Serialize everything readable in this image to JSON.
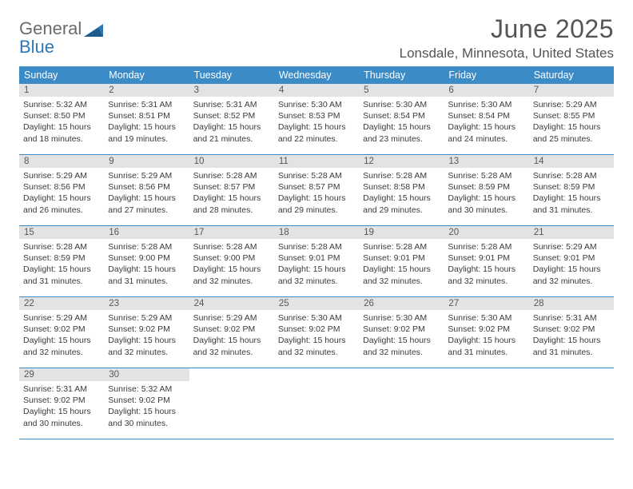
{
  "brand": {
    "word1": "General",
    "word2": "Blue"
  },
  "title": {
    "month_year": "June 2025",
    "location": "Lonsdale, Minnesota, United States"
  },
  "colors": {
    "header_bg": "#3b8bc7",
    "header_text": "#ffffff",
    "daynum_bg": "#e3e3e3",
    "daynum_text": "#575757",
    "row_border": "#3b8bc7",
    "body_text": "#3a3a3a",
    "logo_gray": "#6b6b6b",
    "logo_blue": "#2f78b7"
  },
  "typography": {
    "title_fontsize": 32,
    "location_fontsize": 17,
    "header_fontsize": 12.5,
    "daynum_fontsize": 11.5,
    "body_fontsize": 10.5
  },
  "day_headers": [
    "Sunday",
    "Monday",
    "Tuesday",
    "Wednesday",
    "Thursday",
    "Friday",
    "Saturday"
  ],
  "weeks": [
    [
      {
        "n": "1",
        "sr": "5:32 AM",
        "ss": "8:50 PM",
        "dl": "15 hours and 18 minutes."
      },
      {
        "n": "2",
        "sr": "5:31 AM",
        "ss": "8:51 PM",
        "dl": "15 hours and 19 minutes."
      },
      {
        "n": "3",
        "sr": "5:31 AM",
        "ss": "8:52 PM",
        "dl": "15 hours and 21 minutes."
      },
      {
        "n": "4",
        "sr": "5:30 AM",
        "ss": "8:53 PM",
        "dl": "15 hours and 22 minutes."
      },
      {
        "n": "5",
        "sr": "5:30 AM",
        "ss": "8:54 PM",
        "dl": "15 hours and 23 minutes."
      },
      {
        "n": "6",
        "sr": "5:30 AM",
        "ss": "8:54 PM",
        "dl": "15 hours and 24 minutes."
      },
      {
        "n": "7",
        "sr": "5:29 AM",
        "ss": "8:55 PM",
        "dl": "15 hours and 25 minutes."
      }
    ],
    [
      {
        "n": "8",
        "sr": "5:29 AM",
        "ss": "8:56 PM",
        "dl": "15 hours and 26 minutes."
      },
      {
        "n": "9",
        "sr": "5:29 AM",
        "ss": "8:56 PM",
        "dl": "15 hours and 27 minutes."
      },
      {
        "n": "10",
        "sr": "5:28 AM",
        "ss": "8:57 PM",
        "dl": "15 hours and 28 minutes."
      },
      {
        "n": "11",
        "sr": "5:28 AM",
        "ss": "8:57 PM",
        "dl": "15 hours and 29 minutes."
      },
      {
        "n": "12",
        "sr": "5:28 AM",
        "ss": "8:58 PM",
        "dl": "15 hours and 29 minutes."
      },
      {
        "n": "13",
        "sr": "5:28 AM",
        "ss": "8:59 PM",
        "dl": "15 hours and 30 minutes."
      },
      {
        "n": "14",
        "sr": "5:28 AM",
        "ss": "8:59 PM",
        "dl": "15 hours and 31 minutes."
      }
    ],
    [
      {
        "n": "15",
        "sr": "5:28 AM",
        "ss": "8:59 PM",
        "dl": "15 hours and 31 minutes."
      },
      {
        "n": "16",
        "sr": "5:28 AM",
        "ss": "9:00 PM",
        "dl": "15 hours and 31 minutes."
      },
      {
        "n": "17",
        "sr": "5:28 AM",
        "ss": "9:00 PM",
        "dl": "15 hours and 32 minutes."
      },
      {
        "n": "18",
        "sr": "5:28 AM",
        "ss": "9:01 PM",
        "dl": "15 hours and 32 minutes."
      },
      {
        "n": "19",
        "sr": "5:28 AM",
        "ss": "9:01 PM",
        "dl": "15 hours and 32 minutes."
      },
      {
        "n": "20",
        "sr": "5:28 AM",
        "ss": "9:01 PM",
        "dl": "15 hours and 32 minutes."
      },
      {
        "n": "21",
        "sr": "5:29 AM",
        "ss": "9:01 PM",
        "dl": "15 hours and 32 minutes."
      }
    ],
    [
      {
        "n": "22",
        "sr": "5:29 AM",
        "ss": "9:02 PM",
        "dl": "15 hours and 32 minutes."
      },
      {
        "n": "23",
        "sr": "5:29 AM",
        "ss": "9:02 PM",
        "dl": "15 hours and 32 minutes."
      },
      {
        "n": "24",
        "sr": "5:29 AM",
        "ss": "9:02 PM",
        "dl": "15 hours and 32 minutes."
      },
      {
        "n": "25",
        "sr": "5:30 AM",
        "ss": "9:02 PM",
        "dl": "15 hours and 32 minutes."
      },
      {
        "n": "26",
        "sr": "5:30 AM",
        "ss": "9:02 PM",
        "dl": "15 hours and 32 minutes."
      },
      {
        "n": "27",
        "sr": "5:30 AM",
        "ss": "9:02 PM",
        "dl": "15 hours and 31 minutes."
      },
      {
        "n": "28",
        "sr": "5:31 AM",
        "ss": "9:02 PM",
        "dl": "15 hours and 31 minutes."
      }
    ],
    [
      {
        "n": "29",
        "sr": "5:31 AM",
        "ss": "9:02 PM",
        "dl": "15 hours and 30 minutes."
      },
      {
        "n": "30",
        "sr": "5:32 AM",
        "ss": "9:02 PM",
        "dl": "15 hours and 30 minutes."
      },
      null,
      null,
      null,
      null,
      null
    ]
  ],
  "labels": {
    "sunrise": "Sunrise:",
    "sunset": "Sunset:",
    "daylight": "Daylight:"
  }
}
